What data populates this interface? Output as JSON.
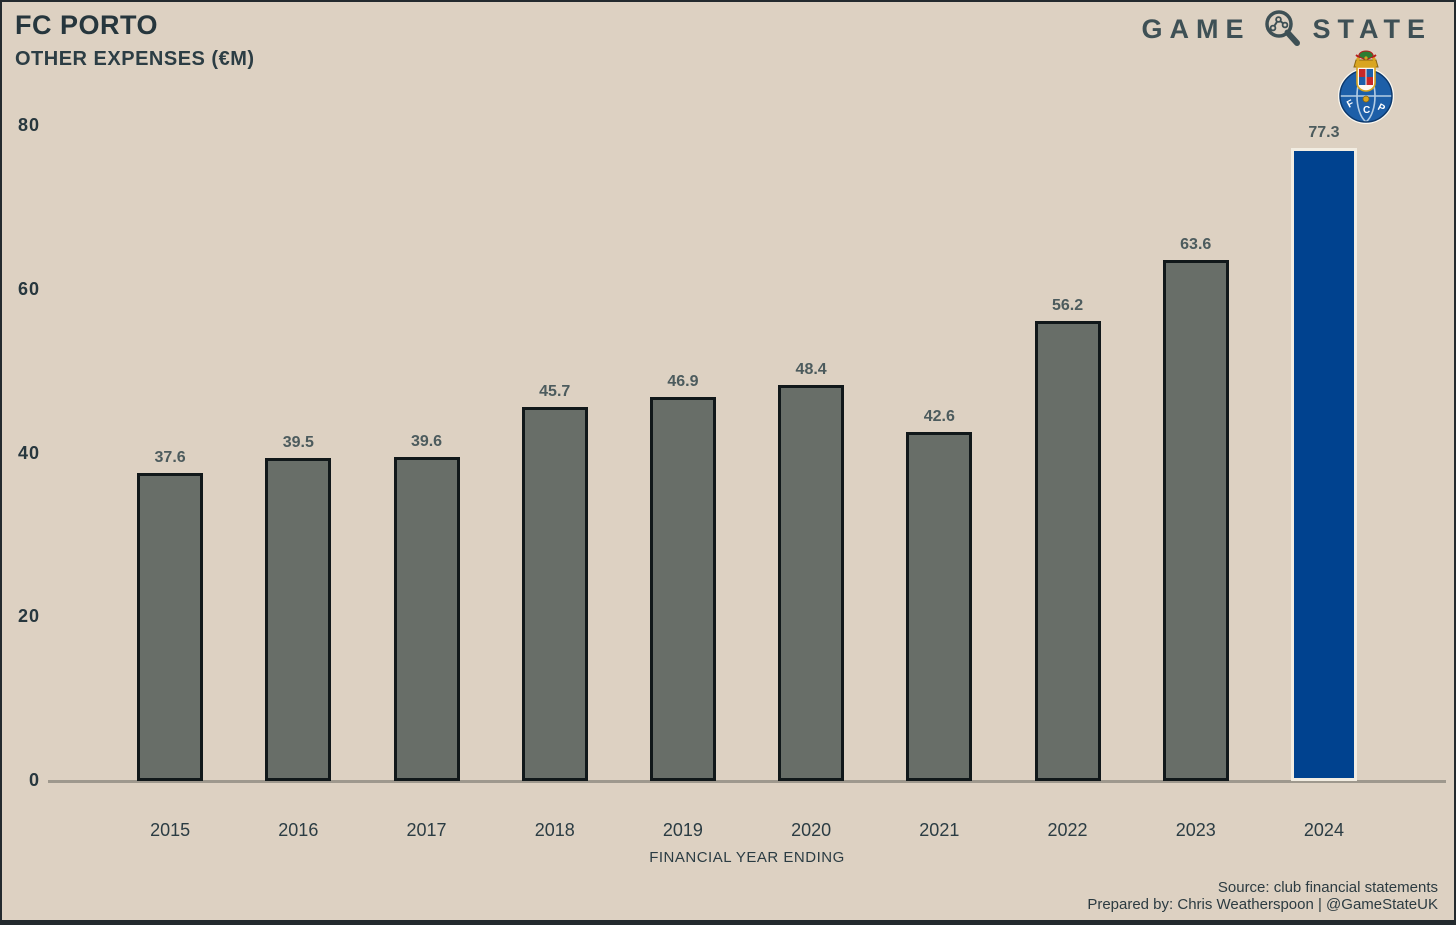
{
  "header": {
    "title": "FC PORTO",
    "subtitle": "OTHER EXPENSES (€M)",
    "brand_word_1": "GAME",
    "brand_word_2": "STATE",
    "brand_icon": "magnifier-chart-icon",
    "club_crest": "fc-porto-crest"
  },
  "chart_data": {
    "type": "bar",
    "title": "FC PORTO",
    "subtitle": "OTHER EXPENSES (€M)",
    "categories": [
      "2015",
      "2016",
      "2017",
      "2018",
      "2019",
      "2020",
      "2021",
      "2022",
      "2023",
      "2024"
    ],
    "values": [
      37.6,
      39.5,
      39.6,
      45.7,
      46.9,
      48.4,
      42.6,
      56.2,
      63.6,
      77.3
    ],
    "xlabel": "FINANCIAL YEAR ENDING",
    "ylabel": "",
    "ylim": [
      0,
      80
    ],
    "yticks": [
      0,
      20,
      40,
      60,
      80
    ],
    "grid": false,
    "legend": null,
    "value_labels_shown": true,
    "bar_color_default": "#686e68",
    "bar_border_default": "#11181a",
    "highlight_index": 9,
    "bar_color_highlight": "#00428f",
    "bar_border_highlight": "#f2ede2"
  },
  "footer": {
    "source": "Source: club financial statements",
    "prepared_by": "Prepared by: Chris Weatherspoon | @GameStateUK"
  },
  "colors": {
    "background": "#ddd1c2",
    "page_border": "#232a2e",
    "title_text": "#26363d",
    "value_label_text": "#4c5b5d",
    "axis_line": "#9e988d",
    "brand_text": "#3e5055"
  }
}
